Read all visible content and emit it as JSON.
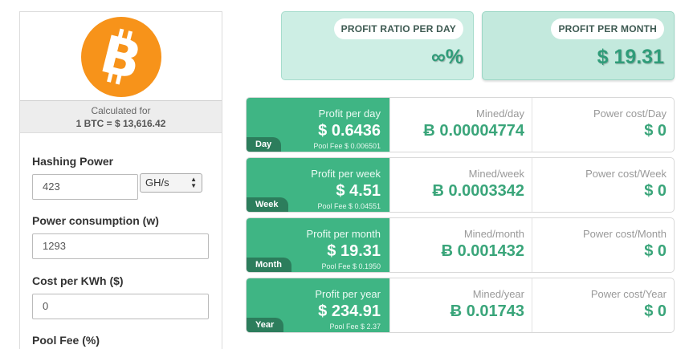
{
  "calculated": {
    "label": "Calculated for",
    "rate": "1 BTC = $ 13,616.42"
  },
  "form": {
    "hashing_power": {
      "label": "Hashing Power",
      "value": "423",
      "unit": "GH/s"
    },
    "power_consumption": {
      "label": "Power consumption (w)",
      "value": "1293"
    },
    "cost_per_kwh": {
      "label": "Cost per KWh ($)",
      "value": "0"
    },
    "pool_fee": {
      "label": "Pool Fee (%)"
    }
  },
  "summary": {
    "ratio_label": "PROFIT RATIO PER DAY",
    "ratio_value": "∞%",
    "month_label": "PROFIT PER MONTH",
    "month_value": "$ 19.31"
  },
  "rows": [
    {
      "tag": "Day",
      "profit_label": "Profit per day",
      "profit_value": "$ 0.6436",
      "pool_fee": "Pool Fee $ 0.006501",
      "mined_label": "Mined/day",
      "mined_value": "Ƀ 0.00004774",
      "power_label": "Power cost/Day",
      "power_value": "$ 0"
    },
    {
      "tag": "Week",
      "profit_label": "Profit per week",
      "profit_value": "$ 4.51",
      "pool_fee": "Pool Fee $ 0.04551",
      "mined_label": "Mined/week",
      "mined_value": "Ƀ 0.0003342",
      "power_label": "Power cost/Week",
      "power_value": "$ 0"
    },
    {
      "tag": "Month",
      "profit_label": "Profit per month",
      "profit_value": "$ 19.31",
      "pool_fee": "Pool Fee $ 0.1950",
      "mined_label": "Mined/month",
      "mined_value": "Ƀ 0.001432",
      "power_label": "Power cost/Month",
      "power_value": "$ 0"
    },
    {
      "tag": "Year",
      "profit_label": "Profit per year",
      "profit_value": "$ 234.91",
      "pool_fee": "Pool Fee $ 2.37",
      "mined_label": "Mined/year",
      "mined_value": "Ƀ 0.01743",
      "power_label": "Power cost/Year",
      "power_value": "$ 0"
    }
  ],
  "colors": {
    "bitcoin_orange": "#f7931a",
    "profit_green": "#3fb584",
    "tag_dark_green": "#2c7d5c",
    "value_green": "#3aa57a"
  },
  "icons": {
    "logo": "bitcoin-logo-icon",
    "select_arrows": "up-down-arrows-icon"
  }
}
